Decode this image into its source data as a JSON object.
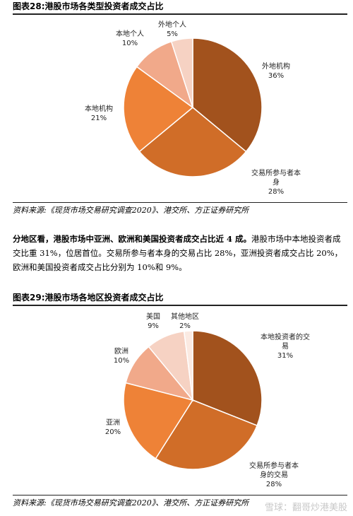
{
  "figure28": {
    "title": "图表28:港股市场各类型投资者成交占比",
    "source": "资料来源:《现货市场交易研究调查2020》、港交所、方正证券研究所"
  },
  "paragraph": {
    "bold": "分地区看，港股市场中亚洲、欧洲和美国投资者成交占比近 4 成。",
    "rest": "港股市场中本地投资者成交比重 31%，位居首位。交易所参与者本身的交易占比 28%，亚洲投资者成交占比 20%，欧洲和美国投资者成交占比分别为 10%和 9%。"
  },
  "figure29": {
    "title": "图表29:港股市场各地区投资者成交占比",
    "source": "资料来源:《现货市场交易研究调查2020》、港交所、方正证券研究所"
  },
  "watermark": "雪球：翻哥炒港美股",
  "chart_data": [
    {
      "type": "pie",
      "title": "图表28:港股市场各类型投资者成交占比",
      "slices": [
        {
          "label": "外地机构",
          "value": 36,
          "pct": "36%",
          "color": "#a2521d",
          "label_lines": [
            "外地机构",
            "36%"
          ]
        },
        {
          "label": "交易所参与者本身",
          "value": 28,
          "pct": "28%",
          "color": "#d06d28",
          "label_lines": [
            "交易所参与者本",
            "身",
            "28%"
          ]
        },
        {
          "label": "本地机构",
          "value": 21,
          "pct": "21%",
          "color": "#ee8237",
          "label_lines": [
            "本地机构",
            "21%"
          ]
        },
        {
          "label": "本地个人",
          "value": 10,
          "pct": "10%",
          "color": "#f1a98a",
          "label_lines": [
            "本地个人",
            "10%"
          ]
        },
        {
          "label": "外地个人",
          "value": 5,
          "pct": "5%",
          "color": "#f6d2c3",
          "label_lines": [
            "外地个人",
            "5%"
          ]
        }
      ]
    },
    {
      "type": "pie",
      "title": "图表29:港股市场各地区投资者成交占比",
      "slices": [
        {
          "label": "本地投资者的交易",
          "value": 31,
          "pct": "31%",
          "color": "#a2521d",
          "label_lines": [
            "本地投资者的交",
            "易",
            "31%"
          ]
        },
        {
          "label": "交易所参与者本身的交易",
          "value": 28,
          "pct": "28%",
          "color": "#d06d28",
          "label_lines": [
            "交易所参与者本",
            "身的交易",
            "28%"
          ]
        },
        {
          "label": "亚洲",
          "value": 20,
          "pct": "20%",
          "color": "#ee8237",
          "label_lines": [
            "亚洲",
            "20%"
          ]
        },
        {
          "label": "欧洲",
          "value": 10,
          "pct": "10%",
          "color": "#f1a98a",
          "label_lines": [
            "欧洲",
            "10%"
          ]
        },
        {
          "label": "美国",
          "value": 9,
          "pct": "9%",
          "color": "#f6d2c3",
          "label_lines": [
            "美国",
            "9%"
          ]
        },
        {
          "label": "其他地区",
          "value": 2,
          "pct": "2%",
          "color": "#fbeae2",
          "label_lines": [
            "其他地区",
            "2%"
          ]
        }
      ]
    }
  ]
}
